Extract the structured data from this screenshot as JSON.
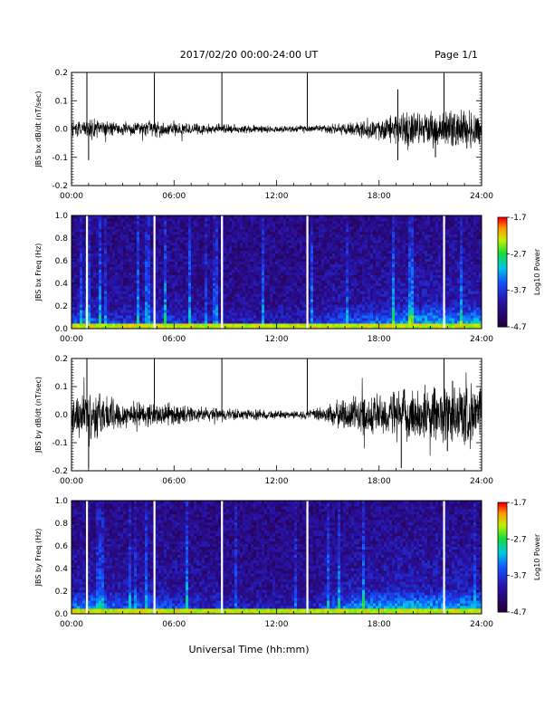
{
  "header": {
    "title": "2017/02/20  00:00-24:00 UT",
    "page": "Page 1/1"
  },
  "footer": {
    "xlabel": "Universal Time (hh:mm)"
  },
  "x_ticks": [
    "00:00",
    "06:00",
    "12:00",
    "18:00",
    "24:00"
  ],
  "colors": {
    "trace": "#000000",
    "gap": "#ffffff"
  },
  "chart_data": [
    {
      "type": "line",
      "ylabel": "JBS bx dB/dt (nT/sec)",
      "xlim": [
        0,
        24
      ],
      "ylim": [
        -0.2,
        0.2
      ],
      "yticks": [
        "0.2",
        "0.1",
        "0.0",
        "-0.1",
        "-0.2"
      ],
      "spikes_hours": [
        0.9,
        4.85,
        8.8,
        13.8,
        21.8
      ],
      "series": [
        {
          "x": [
            0,
            1,
            2,
            3,
            4,
            5,
            6,
            7,
            8,
            9,
            10,
            11,
            12,
            13,
            14,
            15,
            16,
            17,
            18,
            19,
            20,
            21,
            22,
            23,
            24
          ],
          "envelope": [
            0.022,
            0.03,
            0.025,
            0.02,
            0.02,
            0.025,
            0.02,
            0.018,
            0.015,
            0.015,
            0.012,
            0.012,
            0.01,
            0.01,
            0.01,
            0.014,
            0.02,
            0.025,
            0.035,
            0.045,
            0.05,
            0.05,
            0.055,
            0.06,
            0.06
          ]
        }
      ],
      "peaks": [
        [
          1.0,
          -0.11
        ],
        [
          19.1,
          0.14
        ],
        [
          19.1,
          -0.11
        ],
        [
          21.3,
          -0.1
        ]
      ]
    },
    {
      "type": "heatmap",
      "ylabel": "JBS bx Freq (Hz)",
      "xlim": [
        0,
        24
      ],
      "ylim": [
        0.0,
        1.0
      ],
      "yticks": [
        "1.0",
        "0.8",
        "0.6",
        "0.4",
        "0.2",
        "0.0"
      ],
      "colorbar": {
        "label": "Log10 Power",
        "range": [
          -4.7,
          -1.7
        ],
        "ticks": [
          "-1.7",
          "-2.7",
          "-3.7",
          "-4.7"
        ]
      },
      "gap_hours": [
        0.9,
        4.85,
        8.8,
        13.8,
        21.8
      ],
      "activity": [
        0.35,
        0.45,
        0.3,
        0.28,
        0.3,
        0.35,
        0.32,
        0.25,
        0.22,
        0.2,
        0.18,
        0.17,
        0.16,
        0.16,
        0.18,
        0.3,
        0.38,
        0.42,
        0.45,
        0.55,
        0.6,
        0.6,
        0.55,
        0.6,
        0.6
      ]
    },
    {
      "type": "line",
      "ylabel": "JBS by dB/dt (nT/sec)",
      "xlim": [
        0,
        24
      ],
      "ylim": [
        -0.2,
        0.2
      ],
      "yticks": [
        "0.2",
        "0.1",
        "0.0",
        "-0.1",
        "-0.2"
      ],
      "spikes_hours": [
        0.9,
        4.85,
        8.8,
        13.8,
        21.8
      ],
      "series": [
        {
          "x": [
            0,
            1,
            2,
            3,
            4,
            5,
            6,
            7,
            8,
            9,
            10,
            11,
            12,
            13,
            14,
            15,
            16,
            17,
            18,
            19,
            20,
            21,
            22,
            23,
            24
          ],
          "envelope": [
            0.05,
            0.08,
            0.06,
            0.04,
            0.035,
            0.035,
            0.03,
            0.025,
            0.02,
            0.02,
            0.015,
            0.015,
            0.012,
            0.012,
            0.015,
            0.03,
            0.05,
            0.06,
            0.065,
            0.07,
            0.08,
            0.08,
            0.09,
            0.1,
            0.08
          ]
        }
      ],
      "peaks": [
        [
          1.0,
          -0.19
        ],
        [
          19.3,
          -0.19
        ],
        [
          22.3,
          0.12
        ],
        [
          22.0,
          -0.13
        ]
      ]
    },
    {
      "type": "heatmap",
      "ylabel": "JBS by Freq (Hz)",
      "xlim": [
        0,
        24
      ],
      "ylim": [
        0.0,
        1.0
      ],
      "yticks": [
        "1.0",
        "0.8",
        "0.6",
        "0.4",
        "0.2",
        "0.0"
      ],
      "colorbar": {
        "label": "Log10 Power",
        "range": [
          -4.7,
          -1.7
        ],
        "ticks": [
          "-1.7",
          "-2.7",
          "-3.7",
          "-4.7"
        ]
      },
      "gap_hours": [
        0.9,
        4.85,
        8.8,
        13.8,
        21.8
      ],
      "activity": [
        0.45,
        0.55,
        0.45,
        0.4,
        0.4,
        0.4,
        0.35,
        0.3,
        0.25,
        0.22,
        0.2,
        0.18,
        0.17,
        0.17,
        0.2,
        0.35,
        0.5,
        0.55,
        0.6,
        0.65,
        0.65,
        0.6,
        0.6,
        0.6,
        0.55
      ]
    }
  ]
}
